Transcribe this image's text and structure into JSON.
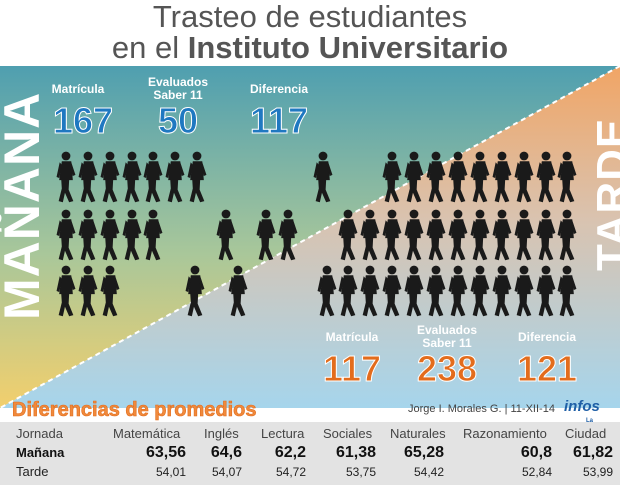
{
  "title": {
    "line1": "Trasteo de estudiantes",
    "line2_prefix": "en el",
    "line2_bold": "Instituto Universitario"
  },
  "colors": {
    "blue": "#1f78c1",
    "orange": "#e36c1c",
    "teal": "#5aa6b0",
    "yellow": "#f0cf74",
    "peach": "#f3b78a",
    "sky": "#a9d6ea"
  },
  "manana": {
    "label": "MAÑANA",
    "matricula_label": "Matrícula",
    "matricula": "167",
    "evaluados_label_1": "Evaluados",
    "evaluados_label_2": "Saber 11",
    "evaluados": "50",
    "diferencia_label": "Diferencia",
    "diferencia": "117"
  },
  "tarde": {
    "label": "TARDE",
    "matricula_label": "Matrícula",
    "matricula": "117",
    "evaluados_label_1": "Evaluados",
    "evaluados_label_2": "Saber 11",
    "evaluados": "238",
    "diferencia_label": "Diferencia",
    "diferencia": "121"
  },
  "section_title": "Diferencias de promedios",
  "credit": "Jorge I. Morales G. | 11-XII-14",
  "logo": "infos",
  "logo_sub": "La Prensa",
  "table": {
    "headers": [
      "Jornada",
      "Matemática",
      "Inglés",
      "Lectura",
      "Sociales",
      "Naturales",
      "Razonamiento",
      "Ciudad"
    ],
    "rows": [
      {
        "name": "Mañana",
        "values": [
          "63,56",
          "64,6",
          "62,2",
          "61,38",
          "65,28",
          "60,8",
          "61,82"
        ]
      },
      {
        "name": "Tarde",
        "values": [
          "54,01",
          "54,07",
          "54,72",
          "53,75",
          "54,42",
          "52,84",
          "53,99"
        ]
      }
    ]
  }
}
